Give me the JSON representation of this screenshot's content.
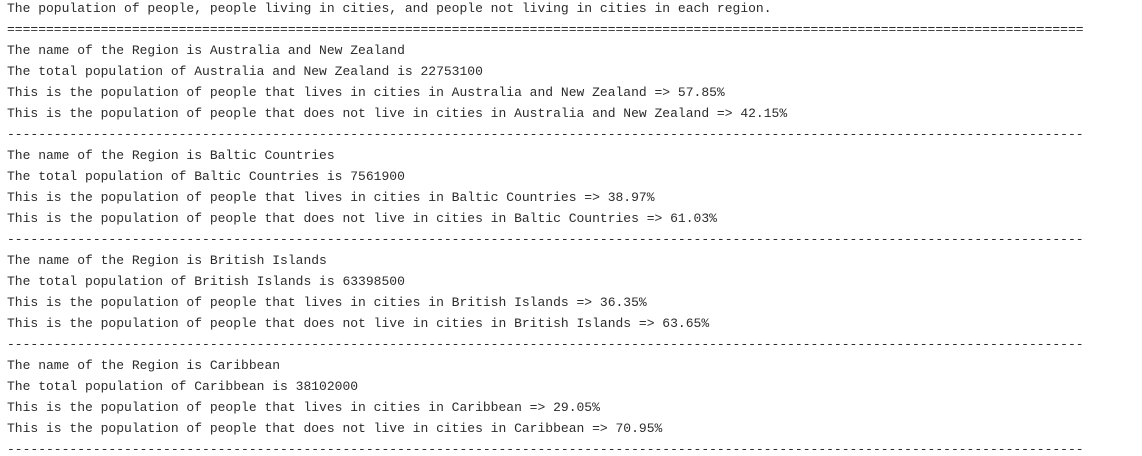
{
  "console": {
    "header": {
      "title": "The population of people, people living in cities, and people not living in cities in each region.",
      "separator": "=========================================================================================================================================="
    },
    "regions": [
      {
        "lines": [
          "The name of the Region is Australia and New Zealand",
          "The total population of Australia and New Zealand is 22753100",
          "This is the population of people that lives in cities in Australia and New Zealand => 57.85%",
          "This is the population of people that does not live in cities in Australia and New Zealand => 42.15%",
          "------------------------------------------------------------------------------------------------------------------------------------------"
        ]
      },
      {
        "lines": [
          "The name of the Region is Baltic Countries",
          "The total population of Baltic Countries is 7561900",
          "This is the population of people that lives in cities in Baltic Countries => 38.97%",
          "This is the population of people that does not live in cities in Baltic Countries => 61.03%",
          "------------------------------------------------------------------------------------------------------------------------------------------"
        ]
      },
      {
        "lines": [
          "The name of the Region is British Islands",
          "The total population of British Islands is 63398500",
          "This is the population of people that lives in cities in British Islands => 36.35%",
          "This is the population of people that does not live in cities in British Islands => 63.65%",
          "------------------------------------------------------------------------------------------------------------------------------------------"
        ]
      },
      {
        "lines": [
          "The name of the Region is Caribbean",
          "The total population of Caribbean is 38102000",
          "This is the population of people that lives in cities in Caribbean => 29.05%",
          "This is the population of people that does not live in cities in Caribbean => 70.95%",
          "------------------------------------------------------------------------------------------------------------------------------------------"
        ]
      }
    ]
  }
}
